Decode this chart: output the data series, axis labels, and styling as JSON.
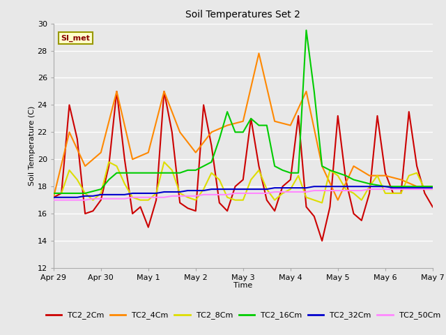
{
  "title": "Soil Temperatures Set 2",
  "xlabel": "Time",
  "ylabel": "Soil Temperature (C)",
  "ylim": [
    12,
    30
  ],
  "yticks": [
    12,
    14,
    16,
    18,
    20,
    22,
    24,
    26,
    28,
    30
  ],
  "fig_bg_color": "#e8e8e8",
  "plot_bg_color": "#e8e8e8",
  "annotation_text": "SI_met",
  "annotation_bg": "#ffffcc",
  "annotation_border": "#999900",
  "annotation_text_color": "#880000",
  "series": {
    "TC2_2Cm": {
      "color": "#cc0000",
      "times": [
        0,
        2,
        4,
        6,
        8,
        10,
        12,
        14,
        16,
        18,
        20,
        22,
        24,
        26,
        28,
        30,
        32,
        34,
        36,
        38,
        40,
        42,
        44,
        46,
        48,
        50,
        52,
        54,
        56,
        58,
        60,
        62,
        64,
        66,
        68,
        70,
        72,
        74,
        76,
        78,
        80,
        82,
        84,
        86,
        88,
        90,
        92,
        94,
        96
      ],
      "values": [
        17.2,
        17.5,
        24.0,
        21.5,
        16.0,
        16.2,
        17.0,
        19.5,
        25.0,
        20.0,
        16.0,
        16.5,
        15.0,
        17.0,
        25.0,
        22.0,
        16.8,
        16.4,
        16.2,
        24.0,
        21.0,
        16.8,
        16.2,
        18.0,
        18.5,
        23.0,
        19.5,
        17.0,
        16.2,
        18.0,
        18.5,
        23.2,
        16.5,
        15.8,
        14.0,
        16.5,
        23.2,
        18.5,
        16.0,
        15.5,
        17.5,
        23.2,
        19.0,
        17.5,
        17.5,
        23.5,
        19.5,
        17.5,
        16.5
      ]
    },
    "TC2_4Cm": {
      "color": "#ff8800",
      "times": [
        0,
        4,
        8,
        12,
        16,
        20,
        24,
        28,
        32,
        36,
        40,
        44,
        48,
        52,
        56,
        60,
        64,
        68,
        72,
        76,
        80,
        84,
        88,
        92,
        96
      ],
      "values": [
        17.2,
        22.0,
        19.5,
        20.5,
        25.0,
        20.0,
        20.5,
        25.0,
        22.0,
        20.5,
        22.0,
        22.5,
        22.8,
        27.8,
        22.8,
        22.5,
        25.0,
        19.5,
        17.0,
        19.5,
        18.8,
        18.8,
        18.5,
        18.0,
        18.0
      ]
    },
    "TC2_8Cm": {
      "color": "#dddd00",
      "times": [
        0,
        2,
        4,
        6,
        8,
        10,
        12,
        14,
        16,
        18,
        20,
        22,
        24,
        26,
        28,
        30,
        32,
        34,
        36,
        38,
        40,
        42,
        44,
        46,
        48,
        50,
        52,
        54,
        56,
        58,
        60,
        62,
        64,
        66,
        68,
        70,
        72,
        74,
        76,
        78,
        80,
        82,
        84,
        86,
        88,
        90,
        92,
        94,
        96
      ],
      "values": [
        17.5,
        17.5,
        19.2,
        18.5,
        17.5,
        17.0,
        17.5,
        19.8,
        19.5,
        18.2,
        17.2,
        17.0,
        17.0,
        17.5,
        19.8,
        19.2,
        17.5,
        17.2,
        17.0,
        17.8,
        19.0,
        18.5,
        17.2,
        17.0,
        17.0,
        18.5,
        19.2,
        17.8,
        17.0,
        17.5,
        17.8,
        18.8,
        17.2,
        17.0,
        16.8,
        19.2,
        18.8,
        17.8,
        17.5,
        17.0,
        18.0,
        18.8,
        17.5,
        17.5,
        17.5,
        18.8,
        19.0,
        17.8,
        17.8
      ]
    },
    "TC2_16Cm": {
      "color": "#00cc00",
      "times": [
        0,
        4,
        8,
        12,
        14,
        16,
        18,
        20,
        22,
        24,
        26,
        28,
        30,
        32,
        34,
        36,
        38,
        40,
        42,
        44,
        46,
        48,
        50,
        52,
        54,
        56,
        58,
        60,
        62,
        64,
        66,
        68,
        70,
        72,
        74,
        76,
        80,
        84,
        88,
        92,
        96
      ],
      "values": [
        17.5,
        17.5,
        17.5,
        17.8,
        18.5,
        19.0,
        19.0,
        19.0,
        19.0,
        19.0,
        19.0,
        19.0,
        19.0,
        19.0,
        19.2,
        19.2,
        19.5,
        19.8,
        21.5,
        23.5,
        22.0,
        22.0,
        23.0,
        22.5,
        22.5,
        19.5,
        19.2,
        19.0,
        19.0,
        29.5,
        25.0,
        19.5,
        19.2,
        19.0,
        18.8,
        18.5,
        18.2,
        18.0,
        18.0,
        18.0,
        18.0
      ]
    },
    "TC2_32Cm": {
      "color": "#0000cc",
      "times": [
        0,
        2,
        4,
        6,
        8,
        10,
        12,
        14,
        16,
        18,
        20,
        22,
        24,
        26,
        28,
        30,
        32,
        34,
        36,
        38,
        40,
        42,
        44,
        46,
        48,
        50,
        52,
        54,
        56,
        58,
        60,
        62,
        64,
        66,
        68,
        70,
        72,
        74,
        76,
        78,
        80,
        82,
        84,
        86,
        88,
        90,
        92,
        94,
        96
      ],
      "values": [
        17.2,
        17.2,
        17.2,
        17.2,
        17.3,
        17.3,
        17.4,
        17.4,
        17.4,
        17.4,
        17.5,
        17.5,
        17.5,
        17.5,
        17.6,
        17.6,
        17.6,
        17.7,
        17.7,
        17.7,
        17.8,
        17.8,
        17.8,
        17.8,
        17.8,
        17.8,
        17.8,
        17.8,
        17.9,
        17.9,
        17.9,
        17.9,
        17.9,
        18.0,
        18.0,
        18.0,
        18.0,
        18.0,
        18.0,
        18.0,
        18.0,
        18.0,
        18.0,
        17.9,
        17.9,
        17.9,
        17.9,
        17.9,
        17.9
      ]
    },
    "TC2_50Cm": {
      "color": "#ff88ff",
      "times": [
        0,
        2,
        4,
        6,
        8,
        10,
        12,
        14,
        16,
        18,
        20,
        22,
        24,
        26,
        28,
        30,
        32,
        34,
        36,
        38,
        40,
        42,
        44,
        46,
        48,
        50,
        52,
        54,
        56,
        58,
        60,
        62,
        64,
        66,
        68,
        70,
        72,
        74,
        76,
        78,
        80,
        82,
        84,
        86,
        88,
        90,
        92,
        94,
        96
      ],
      "values": [
        17.0,
        17.0,
        17.0,
        17.0,
        17.0,
        17.1,
        17.1,
        17.1,
        17.1,
        17.1,
        17.2,
        17.2,
        17.2,
        17.2,
        17.2,
        17.3,
        17.3,
        17.3,
        17.3,
        17.4,
        17.4,
        17.4,
        17.4,
        17.5,
        17.5,
        17.5,
        17.5,
        17.5,
        17.6,
        17.6,
        17.6,
        17.6,
        17.6,
        17.7,
        17.7,
        17.7,
        17.7,
        17.7,
        17.7,
        17.7,
        17.8,
        17.8,
        17.8,
        17.8,
        17.8,
        17.8,
        17.8,
        17.8,
        17.8
      ]
    }
  },
  "xtick_labels": [
    "Apr 29",
    "Apr 30",
    "May 1",
    "May 2",
    "May 3",
    "May 4",
    "May 5",
    "May 6",
    "May 7"
  ],
  "xtick_positions": [
    0,
    12,
    24,
    36,
    48,
    60,
    72,
    84,
    96
  ],
  "legend_labels": [
    "TC2_2Cm",
    "TC2_4Cm",
    "TC2_8Cm",
    "TC2_16Cm",
    "TC2_32Cm",
    "TC2_50Cm"
  ],
  "legend_colors": [
    "#cc0000",
    "#ff8800",
    "#dddd00",
    "#00cc00",
    "#0000cc",
    "#ff88ff"
  ]
}
